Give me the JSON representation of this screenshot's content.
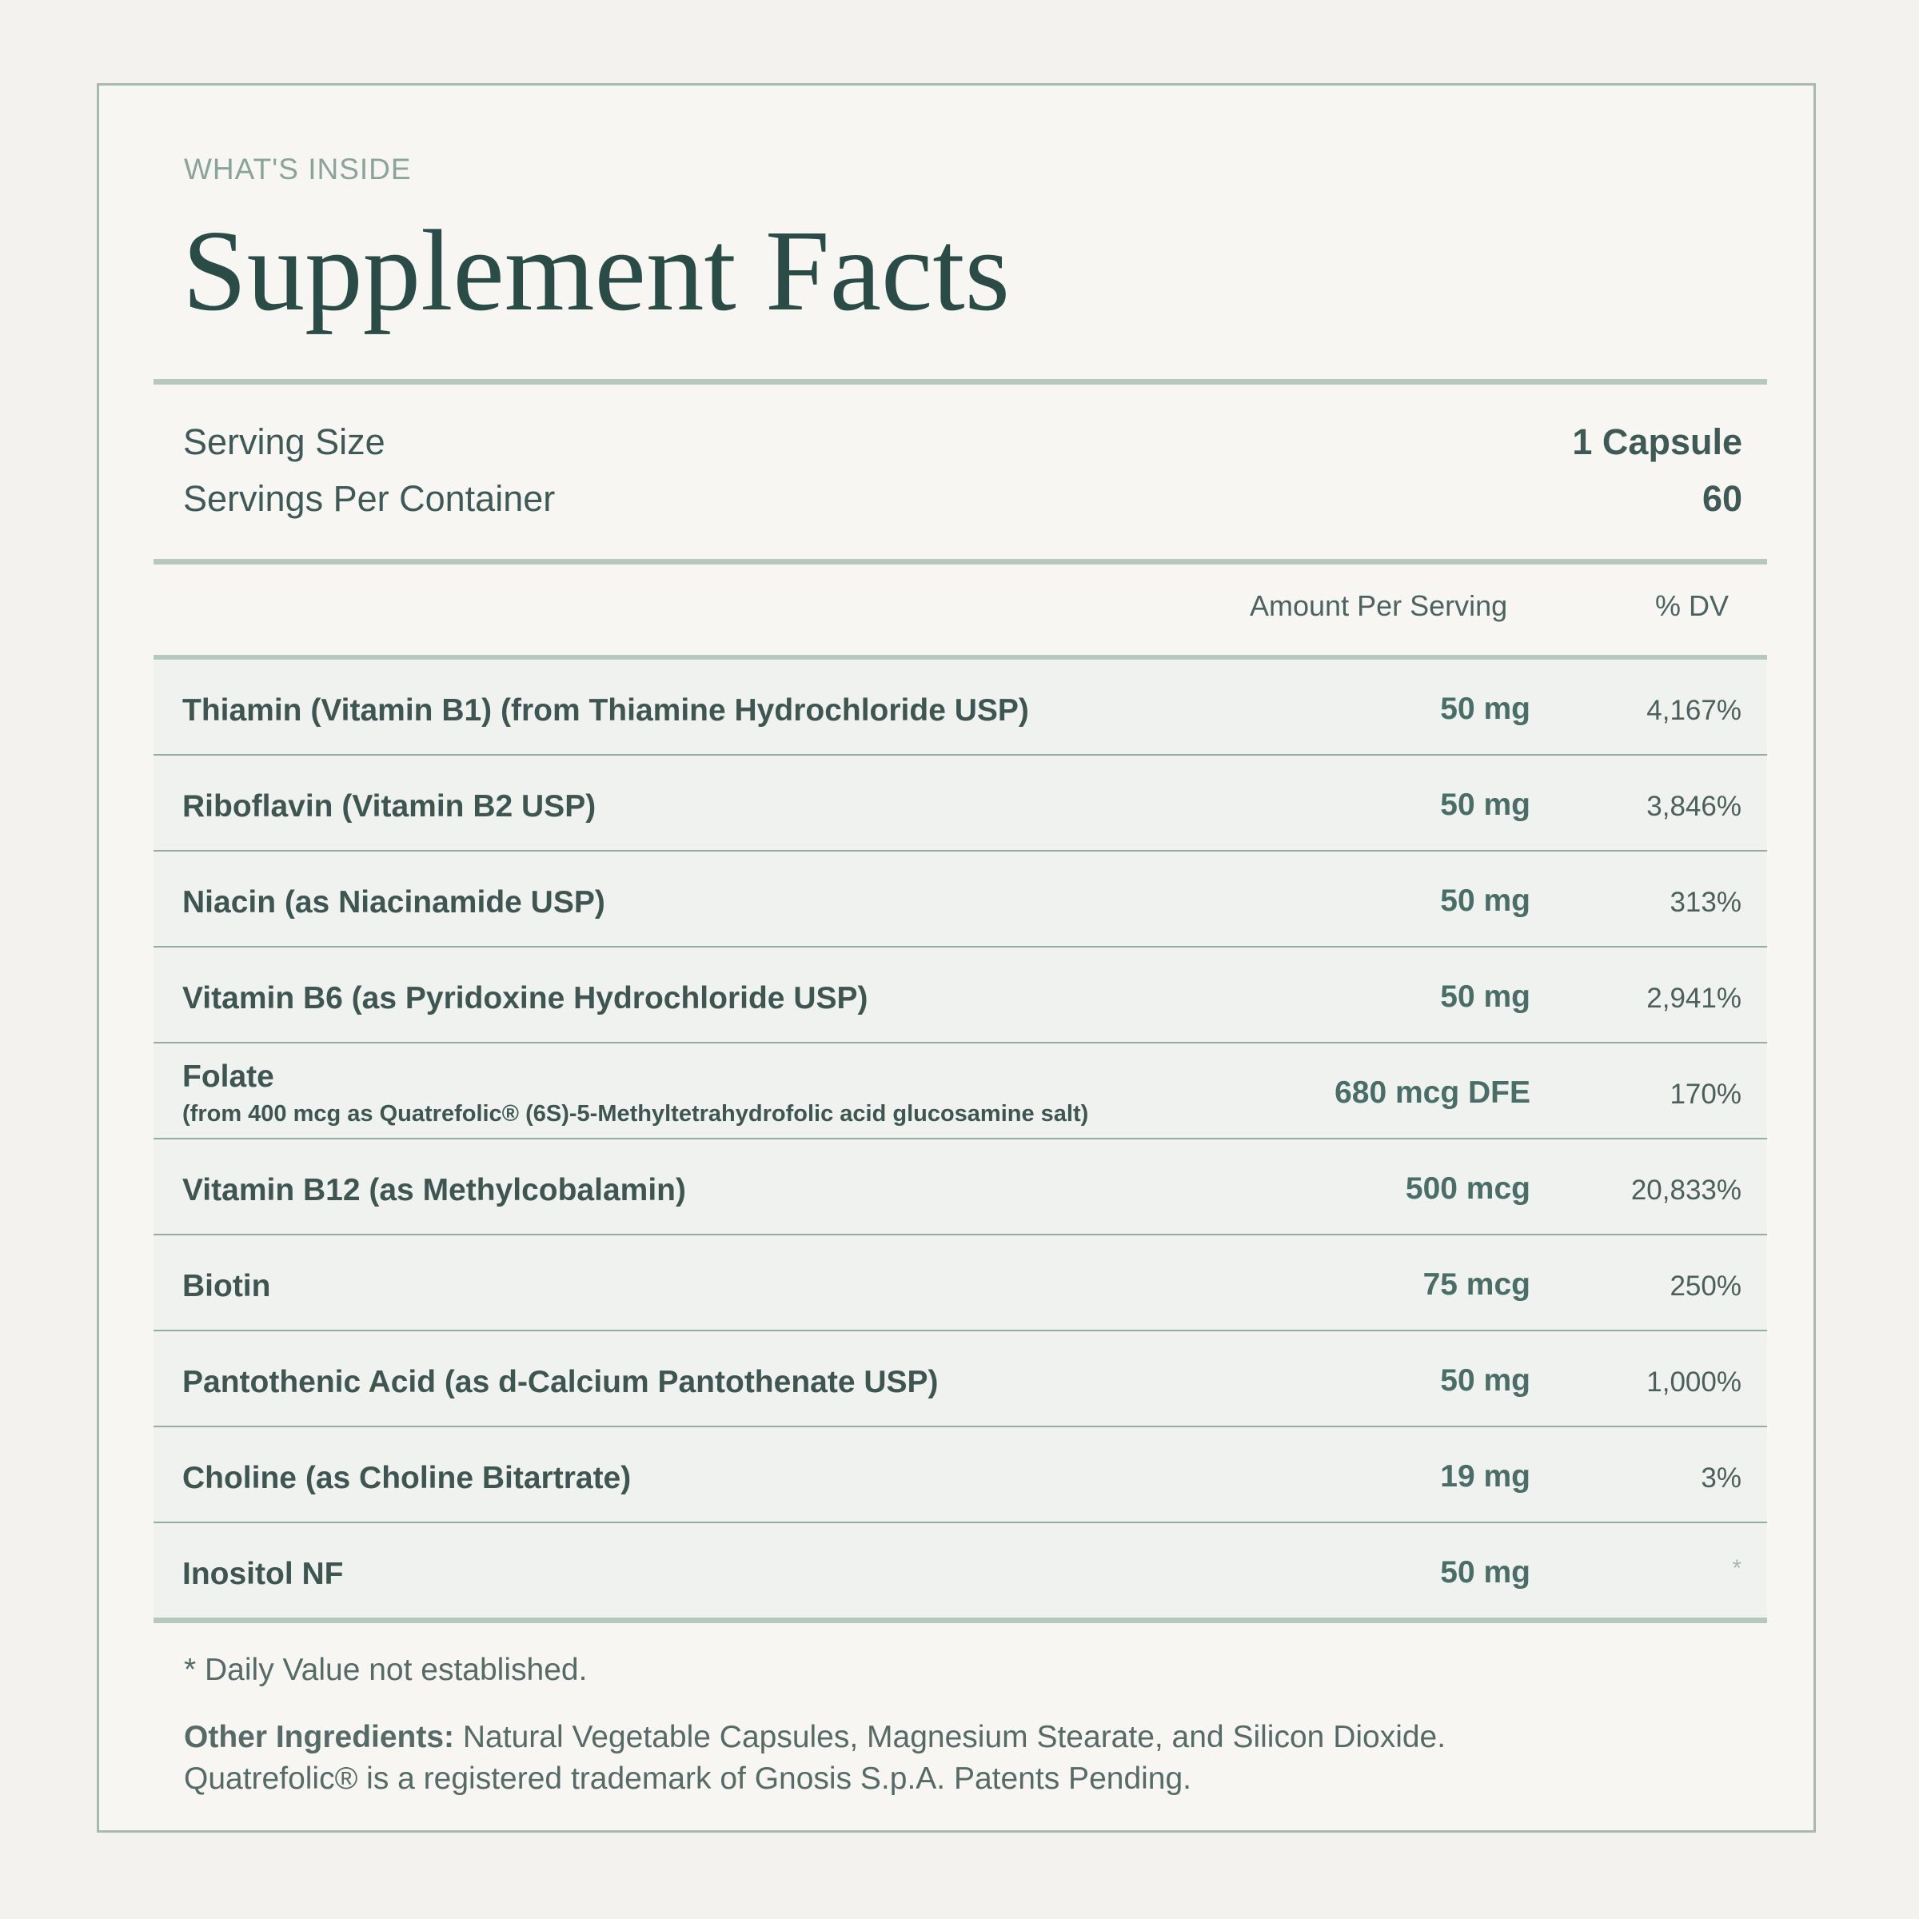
{
  "header": {
    "eyebrow": "WHAT'S INSIDE",
    "title": "Supplement Facts"
  },
  "serving": {
    "size_label": "Serving Size",
    "size_value": "1 Capsule",
    "per_container_label": "Servings Per Container",
    "per_container_value": "60"
  },
  "table": {
    "headers": {
      "amount": "Amount Per Serving",
      "dv": "% DV"
    },
    "rows": [
      {
        "name": "Thiamin (Vitamin B1) (from Thiamine Hydrochloride USP)",
        "amount": "50 mg",
        "dv": "4,167%"
      },
      {
        "name": "Riboflavin (Vitamin B2 USP)",
        "amount": "50 mg",
        "dv": "3,846%"
      },
      {
        "name": "Niacin (as Niacinamide USP)",
        "amount": "50 mg",
        "dv": "313%"
      },
      {
        "name": "Vitamin B6 (as Pyridoxine Hydrochloride USP)",
        "amount": "50 mg",
        "dv": "2,941%"
      },
      {
        "name": "Folate",
        "subtext": "(from 400 mcg as Quatrefolic® (6S)-5-Methyltetrahydrofolic acid glucosamine salt)",
        "amount": "680 mcg DFE",
        "dv": "170%"
      },
      {
        "name": "Vitamin B12 (as Methylcobalamin)",
        "amount": "500 mcg",
        "dv": "20,833%"
      },
      {
        "name": "Biotin",
        "amount": "75 mcg",
        "dv": "250%"
      },
      {
        "name": "Pantothenic Acid (as d-Calcium Pantothenate USP)",
        "amount": "50 mg",
        "dv": "1,000%"
      },
      {
        "name": "Choline (as Choline Bitartrate)",
        "amount": "19 mg",
        "dv": "3%"
      },
      {
        "name": "Inositol NF",
        "amount": "50 mg",
        "dv": "*"
      }
    ]
  },
  "footer": {
    "footnote": "* Daily Value not established.",
    "other_label": "Other Ingredients:",
    "other_text": " Natural Vegetable Capsules, Magnesium Stearate, and Silicon Dioxide.",
    "trademark": "Quatrefolic® is a registered trademark of Gnosis S.p.A. Patents Pending."
  }
}
